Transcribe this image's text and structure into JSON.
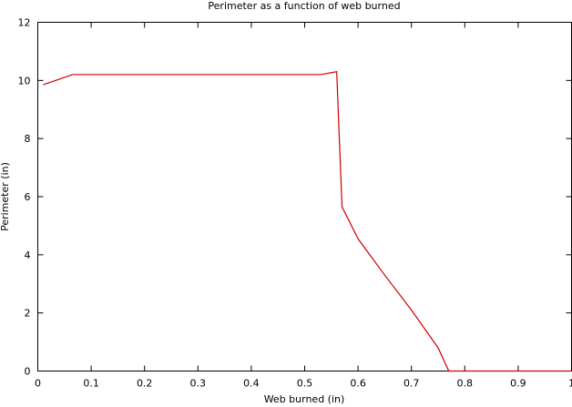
{
  "chart_data": {
    "type": "line",
    "title": "Perimeter as a function of web burned",
    "xlabel": "Web burned (in)",
    "ylabel": "Perimeter (in)",
    "xlim": [
      0,
      1
    ],
    "ylim": [
      0,
      12
    ],
    "x_ticks": [
      0,
      0.1,
      0.2,
      0.3,
      0.4,
      0.5,
      0.6,
      0.7,
      0.8,
      0.9,
      1
    ],
    "x_tick_labels": [
      "0",
      "0.1",
      "0.2",
      "0.3",
      "0.4",
      "0.5",
      "0.6",
      "0.7",
      "0.8",
      "0.9",
      "1"
    ],
    "y_ticks": [
      0,
      2,
      4,
      6,
      8,
      10,
      12
    ],
    "y_tick_labels": [
      "0",
      "2",
      "4",
      "6",
      "8",
      "10",
      "12"
    ],
    "grid": false,
    "legend": "none",
    "series": [
      {
        "color": "#cc0000",
        "x": [
          0.01,
          0.065,
          0.07,
          0.53,
          0.56,
          0.57,
          0.6,
          0.65,
          0.7,
          0.75,
          0.77,
          1.0
        ],
        "y": [
          9.85,
          10.2,
          10.2,
          10.2,
          10.3,
          5.65,
          4.55,
          3.3,
          2.1,
          0.8,
          0.0,
          0.0
        ]
      }
    ]
  }
}
